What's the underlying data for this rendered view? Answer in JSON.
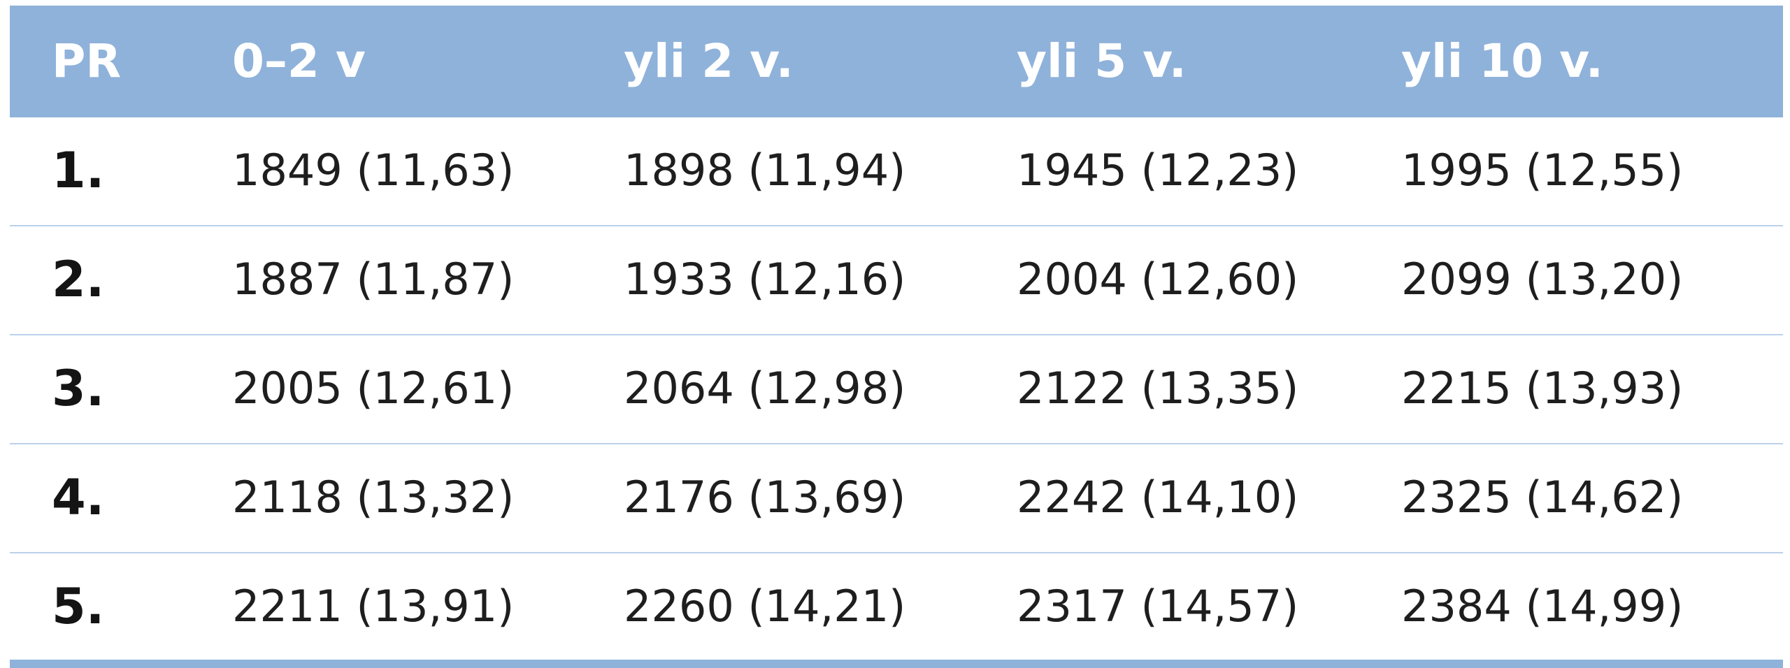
{
  "table": {
    "headers": [
      "PR",
      "0–2 v",
      "yli 2 v.",
      "yli 5 v.",
      "yli 10 v."
    ],
    "rows": [
      [
        "1.",
        "1849 (11,63)",
        "1898 (11,94)",
        "1945 (12,23)",
        "1995 (12,55)"
      ],
      [
        "2.",
        "1887 (11,87)",
        "1933 (12,16)",
        "2004 (12,60)",
        "2099 (13,20)"
      ],
      [
        "3.",
        "2005 (12,61)",
        "2064 (12,98)",
        "2122 (13,35)",
        "2215 (13,93)"
      ],
      [
        "4.",
        "2118 (13,32)",
        "2176 (13,69)",
        "2242 (14,10)",
        "2325 (14,62)"
      ],
      [
        "5.",
        "2211 (13,91)",
        "2260 (14,21)",
        "2317 (14,57)",
        "2384 (14,99)"
      ]
    ]
  },
  "colors": {
    "header_background": "#8fb2da",
    "header_text": "#ffffff",
    "row_divider": "#bcd0ea",
    "body_text": "#1e1e1e"
  }
}
